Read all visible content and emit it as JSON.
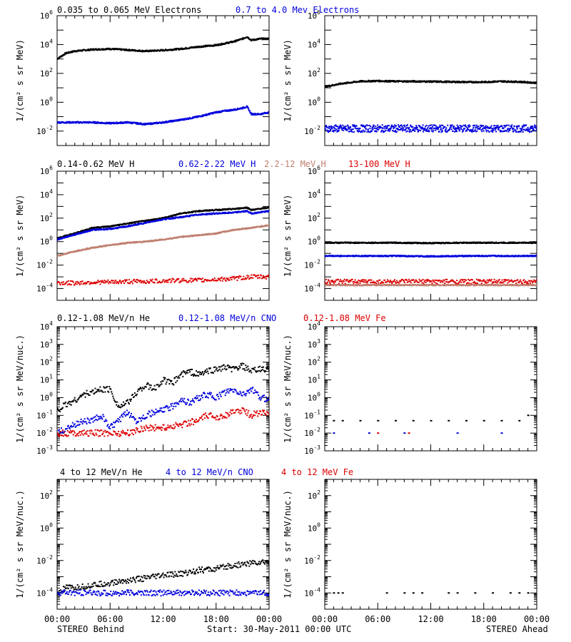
{
  "colors": {
    "black": "#000000",
    "blue": "#0000dd",
    "tan": "#c08070",
    "red": "#dd0000"
  },
  "legends": [
    [
      {
        "text": "0.035 to 0.065 MeV Electrons",
        "color": "#000000"
      },
      {
        "text": "0.7 to 4.0 Mev Electrons",
        "color": "#0000dd"
      }
    ],
    [
      {
        "text": "0.14-0.62 MeV H",
        "color": "#000000"
      },
      {
        "text": "0.62-2.22 MeV H",
        "color": "#0000dd"
      },
      {
        "text": "2.2-12 MeV H",
        "color": "#c08070"
      },
      {
        "text": "13-100 MeV H",
        "color": "#dd0000"
      }
    ],
    [
      {
        "text": "0.12-1.08 MeV/n He",
        "color": "#000000"
      },
      {
        "text": "0.12-1.08 MeV/n CNO",
        "color": "#0000dd"
      },
      {
        "text": "0.12-1.08 MeV Fe",
        "color": "#dd0000"
      }
    ],
    [
      {
        "text": "4 to 12 MeV/n He",
        "color": "#000000"
      },
      {
        "text": "4 to 12 MeV/n CNO",
        "color": "#0000dd"
      },
      {
        "text": "4 to 12 MeV Fe",
        "color": "#dd0000"
      }
    ]
  ],
  "footer": {
    "left": "STEREO Behind",
    "center": "Start: 30-May-2011 00:00 UTC",
    "right": "STEREO Ahead"
  },
  "chart_data": [
    {
      "type": "scatter",
      "id": "behind-electrons",
      "spacecraft": "STEREO Behind",
      "row": 0,
      "col": 0,
      "yscale": "log",
      "xlim": [
        0,
        24
      ],
      "ylim_exp": [
        -3,
        6
      ],
      "ylabel": "1/(cm² s sr MeV)",
      "ytick_labels": [
        "10^-2",
        "10^0",
        "10^2",
        "10^4",
        "10^6"
      ],
      "xtick_labels": [
        "00:00",
        "06:00",
        "12:00",
        "18:00",
        "00:00"
      ],
      "series": [
        {
          "name": "0.035 to 0.065 MeV Electrons",
          "color": "#000000",
          "x": [
            0,
            1,
            2,
            4,
            6,
            8,
            10,
            12,
            14,
            16,
            18,
            19,
            20,
            21,
            21.5,
            22,
            23,
            24
          ],
          "y": [
            1000,
            2500,
            3500,
            4500,
            5000,
            4200,
            3500,
            4000,
            5000,
            7000,
            9000,
            12000,
            16000,
            25000,
            35000,
            20000,
            25000,
            25000
          ]
        },
        {
          "name": "0.7 to 4.0 Mev Electrons",
          "color": "#0000dd",
          "x": [
            0,
            2,
            4,
            6,
            8,
            10,
            12,
            14,
            16,
            18,
            19,
            20,
            21,
            21.5,
            22,
            23,
            24
          ],
          "y": [
            0.04,
            0.04,
            0.04,
            0.035,
            0.04,
            0.03,
            0.04,
            0.06,
            0.1,
            0.2,
            0.25,
            0.3,
            0.4,
            0.5,
            0.15,
            0.15,
            0.2
          ]
        }
      ]
    },
    {
      "type": "scatter",
      "id": "ahead-electrons",
      "spacecraft": "STEREO Ahead",
      "row": 0,
      "col": 1,
      "yscale": "log",
      "xlim": [
        0,
        24
      ],
      "ylim_exp": [
        -3,
        6
      ],
      "ylabel": "1/(cm² s sr MeV)",
      "ytick_labels": [
        "10^-2",
        "10^0",
        "10^2",
        "10^4",
        "10^6"
      ],
      "xtick_labels": [
        "00:00",
        "06:00",
        "12:00",
        "18:00",
        "00:00"
      ],
      "series": [
        {
          "name": "0.035 to 0.065 MeV Electrons",
          "color": "#000000",
          "x": [
            0,
            2,
            4,
            6,
            8,
            10,
            12,
            14,
            16,
            18,
            20,
            22,
            24
          ],
          "y": [
            12,
            20,
            28,
            30,
            28,
            28,
            27,
            26,
            25,
            25,
            28,
            26,
            22
          ]
        },
        {
          "name": "0.7 to 4.0 Mev Electrons",
          "color": "#0000dd",
          "x": [
            0,
            2,
            4,
            6,
            8,
            10,
            12,
            14,
            16,
            18,
            20,
            22,
            24
          ],
          "y": [
            0.015,
            0.015,
            0.015,
            0.015,
            0.015,
            0.015,
            0.015,
            0.015,
            0.015,
            0.015,
            0.015,
            0.015,
            0.015
          ]
        }
      ]
    },
    {
      "type": "scatter",
      "id": "behind-protons",
      "spacecraft": "STEREO Behind",
      "row": 1,
      "col": 0,
      "yscale": "log",
      "xlim": [
        0,
        24
      ],
      "ylim_exp": [
        -5,
        6
      ],
      "ylabel": "1/(cm² s sr MeV)",
      "ytick_labels": [
        "10^-4",
        "10^-2",
        "10^0",
        "10^2",
        "10^4",
        "10^6"
      ],
      "xtick_labels": [
        "00:00",
        "06:00",
        "12:00",
        "18:00",
        "00:00"
      ],
      "series": [
        {
          "name": "0.14-0.62 MeV H",
          "color": "#000000",
          "x": [
            0,
            2,
            4,
            6,
            8,
            10,
            12,
            14,
            16,
            18,
            20,
            21.5,
            22,
            24
          ],
          "y": [
            2,
            5,
            15,
            20,
            35,
            60,
            100,
            250,
            400,
            500,
            600,
            800,
            500,
            800
          ]
        },
        {
          "name": "0.62-2.22 MeV H",
          "color": "#0000dd",
          "x": [
            0,
            2,
            4,
            6,
            8,
            10,
            12,
            14,
            16,
            18,
            20,
            21.5,
            22,
            24
          ],
          "y": [
            1.5,
            4,
            10,
            12,
            20,
            40,
            80,
            120,
            200,
            250,
            300,
            400,
            250,
            400
          ]
        },
        {
          "name": "2.2-12 MeV H",
          "color": "#c08070",
          "x": [
            0,
            2,
            4,
            6,
            8,
            10,
            12,
            14,
            16,
            18,
            20,
            22,
            24
          ],
          "y": [
            0.06,
            0.15,
            0.3,
            0.5,
            0.8,
            1.0,
            1.5,
            2.5,
            3.5,
            5,
            10,
            15,
            25
          ]
        },
        {
          "name": "13-100 MeV H",
          "color": "#dd0000",
          "x": [
            0,
            2,
            4,
            6,
            8,
            10,
            12,
            14,
            16,
            18,
            20,
            22,
            24
          ],
          "y": [
            0.0003,
            0.0003,
            0.00035,
            0.00035,
            0.0004,
            0.0004,
            0.00045,
            0.0005,
            0.0005,
            0.0006,
            0.0007,
            0.001,
            0.001
          ]
        }
      ]
    },
    {
      "type": "scatter",
      "id": "ahead-protons",
      "spacecraft": "STEREO Ahead",
      "row": 1,
      "col": 1,
      "yscale": "log",
      "xlim": [
        0,
        24
      ],
      "ylim_exp": [
        -5,
        6
      ],
      "ylabel": "1/(cm² s sr MeV)",
      "ytick_labels": [
        "10^-4",
        "10^-2",
        "10^0",
        "10^2",
        "10^4",
        "10^6"
      ],
      "xtick_labels": [
        "00:00",
        "06:00",
        "12:00",
        "18:00",
        "00:00"
      ],
      "series": [
        {
          "name": "0.14-0.62 MeV H",
          "color": "#000000",
          "x": [
            0,
            4,
            8,
            12,
            16,
            20,
            24
          ],
          "y": [
            0.8,
            0.8,
            0.8,
            0.75,
            0.8,
            0.8,
            0.8
          ]
        },
        {
          "name": "0.62-2.22 MeV H",
          "color": "#0000dd",
          "x": [
            0,
            4,
            8,
            12,
            16,
            20,
            24
          ],
          "y": [
            0.06,
            0.06,
            0.06,
            0.055,
            0.06,
            0.06,
            0.06
          ]
        },
        {
          "name": "2.2-12 MeV H",
          "color": "#c08070",
          "x": [
            0,
            4,
            8,
            12,
            16,
            20,
            24
          ],
          "y": [
            0.0002,
            0.0002,
            0.0002,
            0.0002,
            0.0002,
            0.0002,
            0.0002
          ]
        },
        {
          "name": "13-100 MeV H",
          "color": "#dd0000",
          "x": [
            0,
            4,
            8,
            12,
            16,
            20,
            24
          ],
          "y": [
            0.0004,
            0.0004,
            0.0004,
            0.0004,
            0.0004,
            0.0004,
            0.0004
          ]
        }
      ]
    },
    {
      "type": "scatter",
      "id": "behind-suprathermal",
      "spacecraft": "STEREO Behind",
      "row": 2,
      "col": 0,
      "yscale": "log",
      "xlim": [
        0,
        24
      ],
      "ylim_exp": [
        -3,
        4
      ],
      "ylabel": "1/(cm² s sr MeV/nuc.)",
      "ytick_labels": [
        "10^-3",
        "10^-2",
        "10^-1",
        "10^0",
        "10^1",
        "10^2",
        "10^3",
        "10^4"
      ],
      "xtick_labels": [
        "00:00",
        "06:00",
        "12:00",
        "18:00",
        "00:00"
      ],
      "series": [
        {
          "name": "0.12-1.08 MeV/n He",
          "color": "#000000",
          "x": [
            0,
            1,
            2,
            3,
            4,
            5,
            6,
            7,
            8,
            9,
            10,
            11,
            12,
            13,
            14,
            15,
            16,
            17,
            18,
            19,
            20,
            21,
            22,
            23,
            24
          ],
          "y": [
            0.2,
            0.4,
            0.7,
            1.5,
            2,
            3,
            3,
            0.3,
            0.5,
            2,
            5,
            3,
            10,
            6,
            20,
            30,
            20,
            30,
            40,
            50,
            40,
            60,
            30,
            40,
            40
          ]
        },
        {
          "name": "0.12-1.08 MeV/n CNO",
          "color": "#0000dd",
          "x": [
            0,
            2,
            3,
            4,
            5,
            6,
            7,
            8,
            9,
            10,
            12,
            13,
            14,
            15,
            16,
            17,
            18,
            19,
            20,
            21,
            22,
            23,
            24
          ],
          "y": [
            0.01,
            0.03,
            0.05,
            0.05,
            0.1,
            0.02,
            0.05,
            0.15,
            0.05,
            0.1,
            0.2,
            0.3,
            0.8,
            0.5,
            1,
            1.5,
            1,
            2,
            2.5,
            1.5,
            3,
            1,
            0.8
          ]
        },
        {
          "name": "0.12-1.08 MeV Fe",
          "color": "#dd0000",
          "x": [
            0,
            2,
            4,
            6,
            8,
            10,
            12,
            14,
            15,
            16,
            17,
            18,
            19,
            20,
            21,
            22,
            23,
            24
          ],
          "y": [
            0.01,
            0.01,
            0.01,
            0.01,
            0.01,
            0.02,
            0.02,
            0.03,
            0.04,
            0.05,
            0.1,
            0.08,
            0.1,
            0.15,
            0.2,
            0.1,
            0.15,
            0.12
          ]
        }
      ]
    },
    {
      "type": "scatter",
      "id": "ahead-suprathermal",
      "spacecraft": "STEREO Ahead",
      "row": 2,
      "col": 1,
      "yscale": "log",
      "xlim": [
        0,
        24
      ],
      "ylim_exp": [
        -3,
        4
      ],
      "ylabel": "1/(cm² s sr MeV/nuc.)",
      "ytick_labels": [
        "10^-3",
        "10^-2",
        "10^-1",
        "10^0",
        "10^1",
        "10^2",
        "10^3",
        "10^4"
      ],
      "xtick_labels": [
        "00:00",
        "06:00",
        "12:00",
        "18:00",
        "00:00"
      ],
      "series": [
        {
          "name": "0.12-1.08 MeV/n He",
          "color": "#000000",
          "x": [
            1,
            2,
            4,
            6,
            8,
            10,
            12,
            14,
            16,
            18,
            20,
            22,
            23
          ],
          "y": [
            0.05,
            0.05,
            0.05,
            0.05,
            0.05,
            0.05,
            0.05,
            0.05,
            0.05,
            0.05,
            0.05,
            0.05,
            0.1
          ]
        },
        {
          "name": "0.12-1.08 MeV/n CNO",
          "color": "#0000dd",
          "x": [
            1,
            5,
            9,
            15,
            20
          ],
          "y": [
            0.01,
            0.01,
            0.01,
            0.01,
            0.01
          ]
        },
        {
          "name": "0.12-1.08 MeV Fe",
          "color": "#dd0000",
          "x": [
            6,
            9.5
          ],
          "y": [
            0.01,
            0.01
          ]
        }
      ]
    },
    {
      "type": "scatter",
      "id": "behind-heavy",
      "spacecraft": "STEREO Behind",
      "row": 3,
      "col": 0,
      "yscale": "log",
      "xlim": [
        0,
        24
      ],
      "ylim_exp": [
        -5,
        3
      ],
      "ylabel": "1/(cm² s sr MeV/nuc.)",
      "ytick_labels": [
        "10^-4",
        "10^-2",
        "10^0",
        "10^2"
      ],
      "xtick_labels": [
        "00:00",
        "06:00",
        "12:00",
        "18:00",
        "00:00"
      ],
      "series": [
        {
          "name": "4 to 12 MeV/n He",
          "color": "#000000",
          "x": [
            0,
            1,
            2,
            4,
            6,
            8,
            10,
            12,
            14,
            16,
            18,
            20,
            22,
            24
          ],
          "y": [
            0.0001,
            0.0002,
            0.0002,
            0.0003,
            0.0004,
            0.0006,
            0.0008,
            0.0012,
            0.0015,
            0.0025,
            0.003,
            0.005,
            0.007,
            0.008
          ]
        },
        {
          "name": "4 to 12 MeV/n CNO",
          "color": "#0000dd",
          "x": [
            0,
            2,
            4,
            6,
            9,
            12,
            15,
            18,
            20,
            22,
            24
          ],
          "y": [
            0.0001,
            0.0001,
            0.0001,
            0.0001,
            0.0001,
            0.0001,
            0.0001,
            0.0001,
            0.0001,
            0.0001,
            0.0001
          ]
        },
        {
          "name": "4 to 12 MeV Fe",
          "color": "#dd0000",
          "x": [],
          "y": []
        }
      ]
    },
    {
      "type": "scatter",
      "id": "ahead-heavy",
      "spacecraft": "STEREO Ahead",
      "row": 3,
      "col": 1,
      "yscale": "log",
      "xlim": [
        0,
        24
      ],
      "ylim_exp": [
        -5,
        3
      ],
      "ylabel": "1/(cm² s sr MeV/nuc.)",
      "ytick_labels": [
        "10^-4",
        "10^-2",
        "10^0",
        "10^2"
      ],
      "xtick_labels": [
        "00:00",
        "06:00",
        "12:00",
        "18:00",
        "00:00"
      ],
      "series": [
        {
          "name": "4 to 12 MeV/n He",
          "color": "#000000",
          "x": [
            1,
            1.5,
            2,
            7,
            9,
            10,
            11,
            14,
            15,
            17,
            19,
            21,
            22,
            23
          ],
          "y": [
            0.0001,
            0.0001,
            0.0001,
            0.0001,
            0.0001,
            0.0001,
            0.0001,
            0.0001,
            0.0001,
            0.0001,
            0.0001,
            0.0001,
            0.0001,
            0.0001
          ]
        },
        {
          "name": "4 to 12 MeV/n CNO",
          "color": "#0000dd",
          "x": [],
          "y": []
        },
        {
          "name": "4 to 12 MeV Fe",
          "color": "#dd0000",
          "x": [],
          "y": []
        }
      ]
    }
  ]
}
